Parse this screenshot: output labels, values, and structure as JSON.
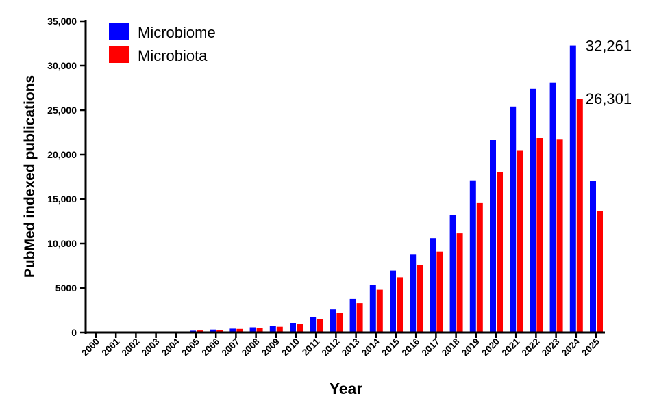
{
  "chart_data": {
    "type": "bar",
    "title": "",
    "xlabel": "Year",
    "ylabel": "PubMed  indexed publications",
    "ylim": [
      0,
      35000
    ],
    "yticks": [
      0,
      5000,
      10000,
      15000,
      20000,
      25000,
      30000,
      35000
    ],
    "ytick_labels": [
      "0",
      "5000",
      "10,000",
      "15,000",
      "20,000",
      "25,000",
      "30,000",
      "35,000"
    ],
    "categories": [
      "2000",
      "2001",
      "2002",
      "2003",
      "2004",
      "2005",
      "2006",
      "2007",
      "2008",
      "2009",
      "2010",
      "2011",
      "2012",
      "2013",
      "2014",
      "2015",
      "2016",
      "2017",
      "2018",
      "2019",
      "2020",
      "2021",
      "2022",
      "2023",
      "2024",
      "2025"
    ],
    "series": [
      {
        "name": "Microbiome",
        "color": "#0000ff",
        "values": [
          20,
          25,
          30,
          45,
          90,
          200,
          330,
          430,
          580,
          740,
          1080,
          1760,
          2600,
          3780,
          5350,
          6950,
          8750,
          10600,
          13200,
          17100,
          21650,
          25400,
          27400,
          28100,
          32261,
          17000
        ]
      },
      {
        "name": "Microbiota",
        "color": "#ff0000",
        "values": [
          20,
          25,
          35,
          55,
          110,
          220,
          310,
          400,
          520,
          640,
          960,
          1500,
          2200,
          3300,
          4800,
          6200,
          7600,
          9100,
          11150,
          14550,
          18000,
          20500,
          21850,
          21750,
          26301,
          13650
        ]
      }
    ],
    "legend_position": "top-left",
    "annotations": [
      {
        "text": "32,261",
        "series": "Microbiome",
        "category": "2024"
      },
      {
        "text": "26,301",
        "series": "Microbiota",
        "category": "2024"
      }
    ]
  }
}
